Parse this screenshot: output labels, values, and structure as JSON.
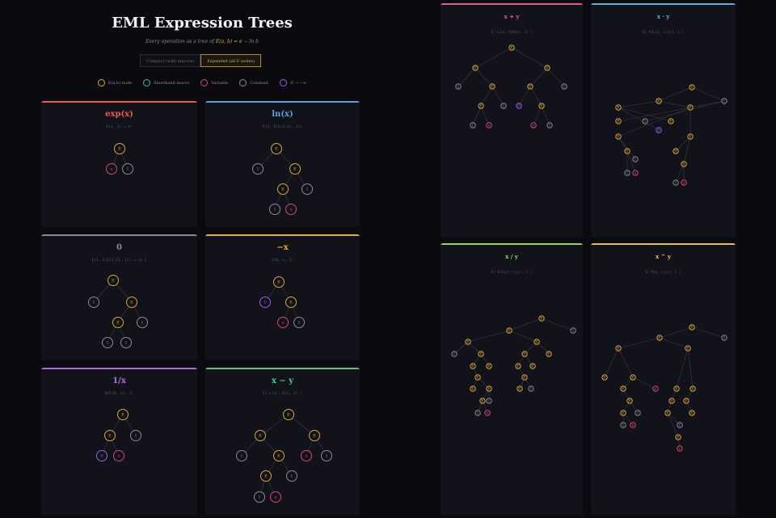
{
  "header": {
    "title": "EML Expression Trees",
    "subtitle_prefix": "Every operation as a tree of",
    "subtitle_formula": "E(a, b) = e",
    "subtitle_suffix": "− ln b",
    "toggle_compact": "Compact (with macros)",
    "toggle_expanded": "Expanded (all E nodes)"
  },
  "legend": [
    {
      "label": "E(a,b) node",
      "color": "#d9a43a"
    },
    {
      "label": "Shorthand macro",
      "color": "#3ab8b0"
    },
    {
      "label": "Variable",
      "color": "#d6457a"
    },
    {
      "label": "Constant",
      "color": "#8a8a96"
    },
    {
      "label": "∅ → −∞",
      "color": "#9b5de5"
    }
  ],
  "cards": [
    {
      "title": "exp(x)",
      "formula": "E(x, 1) = eˣ",
      "color": "#ef5a4a"
    },
    {
      "title": "ln(x)",
      "formula": "E(1, E(E(1,x), 1))",
      "color": "#5aa0e6"
    },
    {
      "title": "0",
      "formula": "E(1, E(E(1,1), 1)) = ln 1",
      "color": "#8a8a96"
    },
    {
      "title": "−x",
      "formula": "S(0, x, 1)",
      "color": "#e6b23a"
    },
    {
      "title": "1/x",
      "formula": "N(E(0, x), 1)",
      "color": "#b46ae6"
    },
    {
      "title": "x − y",
      "formula": "E( L(x), E(y, 1) )",
      "color": "#52c98a"
    },
    {
      "title": "x + y",
      "formula": "E( L(x), E(N(y), 1) )",
      "color": "#e05aa0"
    },
    {
      "title": "x · y",
      "formula": "E( A(L(x), L(y)), 1 )",
      "color": "#52b8d6"
    },
    {
      "title": "x / y",
      "formula": "E( S(L(x), L(y)), 1 )",
      "color": "#9ad64a"
    },
    {
      "title": "x ^ y",
      "formula": "E( M(y, L(x)), 1 )",
      "color": "#e6c23a"
    }
  ],
  "node_labels": {
    "eml": "E",
    "one": "1",
    "var_x": "x",
    "var_y": "y",
    "zero": "0"
  }
}
